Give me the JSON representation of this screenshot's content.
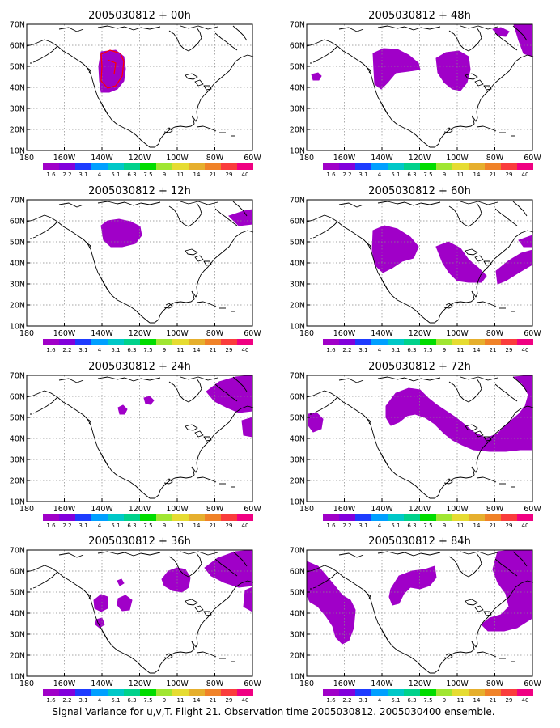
{
  "caption": "Signal Variance for u,v,T. Flight 21. Observation time 2005030812. 2005030400 ensemble.",
  "x_ticks": [
    "180",
    "160W",
    "140W",
    "120W",
    "100W",
    "80W",
    "60W"
  ],
  "y_ticks": [
    "70N",
    "60N",
    "50N",
    "40N",
    "30N",
    "20N",
    "10N"
  ],
  "colorbar": {
    "labels": [
      "1.6",
      "2.2",
      "3.1",
      "4",
      "5.1",
      "6.3",
      "7.5",
      "9",
      "11",
      "14",
      "21",
      "29",
      "40"
    ],
    "colors": [
      "#a000c8",
      "#8200dc",
      "#1e3cff",
      "#00a0ff",
      "#00c8c8",
      "#00d28c",
      "#00dc00",
      "#a0e632",
      "#e6dc32",
      "#e6af2d",
      "#f08228",
      "#fa3c3c",
      "#f00082"
    ]
  },
  "panels": [
    {
      "title": "2005030812 + 00h"
    },
    {
      "title": "2005030812 + 48h"
    },
    {
      "title": "2005030812 + 12h"
    },
    {
      "title": "2005030812 + 60h"
    },
    {
      "title": "2005030812 + 24h"
    },
    {
      "title": "2005030812 + 72h"
    },
    {
      "title": "2005030812 + 36h"
    },
    {
      "title": "2005030812 + 84h"
    }
  ],
  "map_data": {
    "projection": "cylindrical equidistant",
    "lon_range": [
      -180,
      -60
    ],
    "lat_range": [
      10,
      70
    ],
    "shading_color": "#a000c8",
    "flight_track_color": "#ff0000"
  }
}
